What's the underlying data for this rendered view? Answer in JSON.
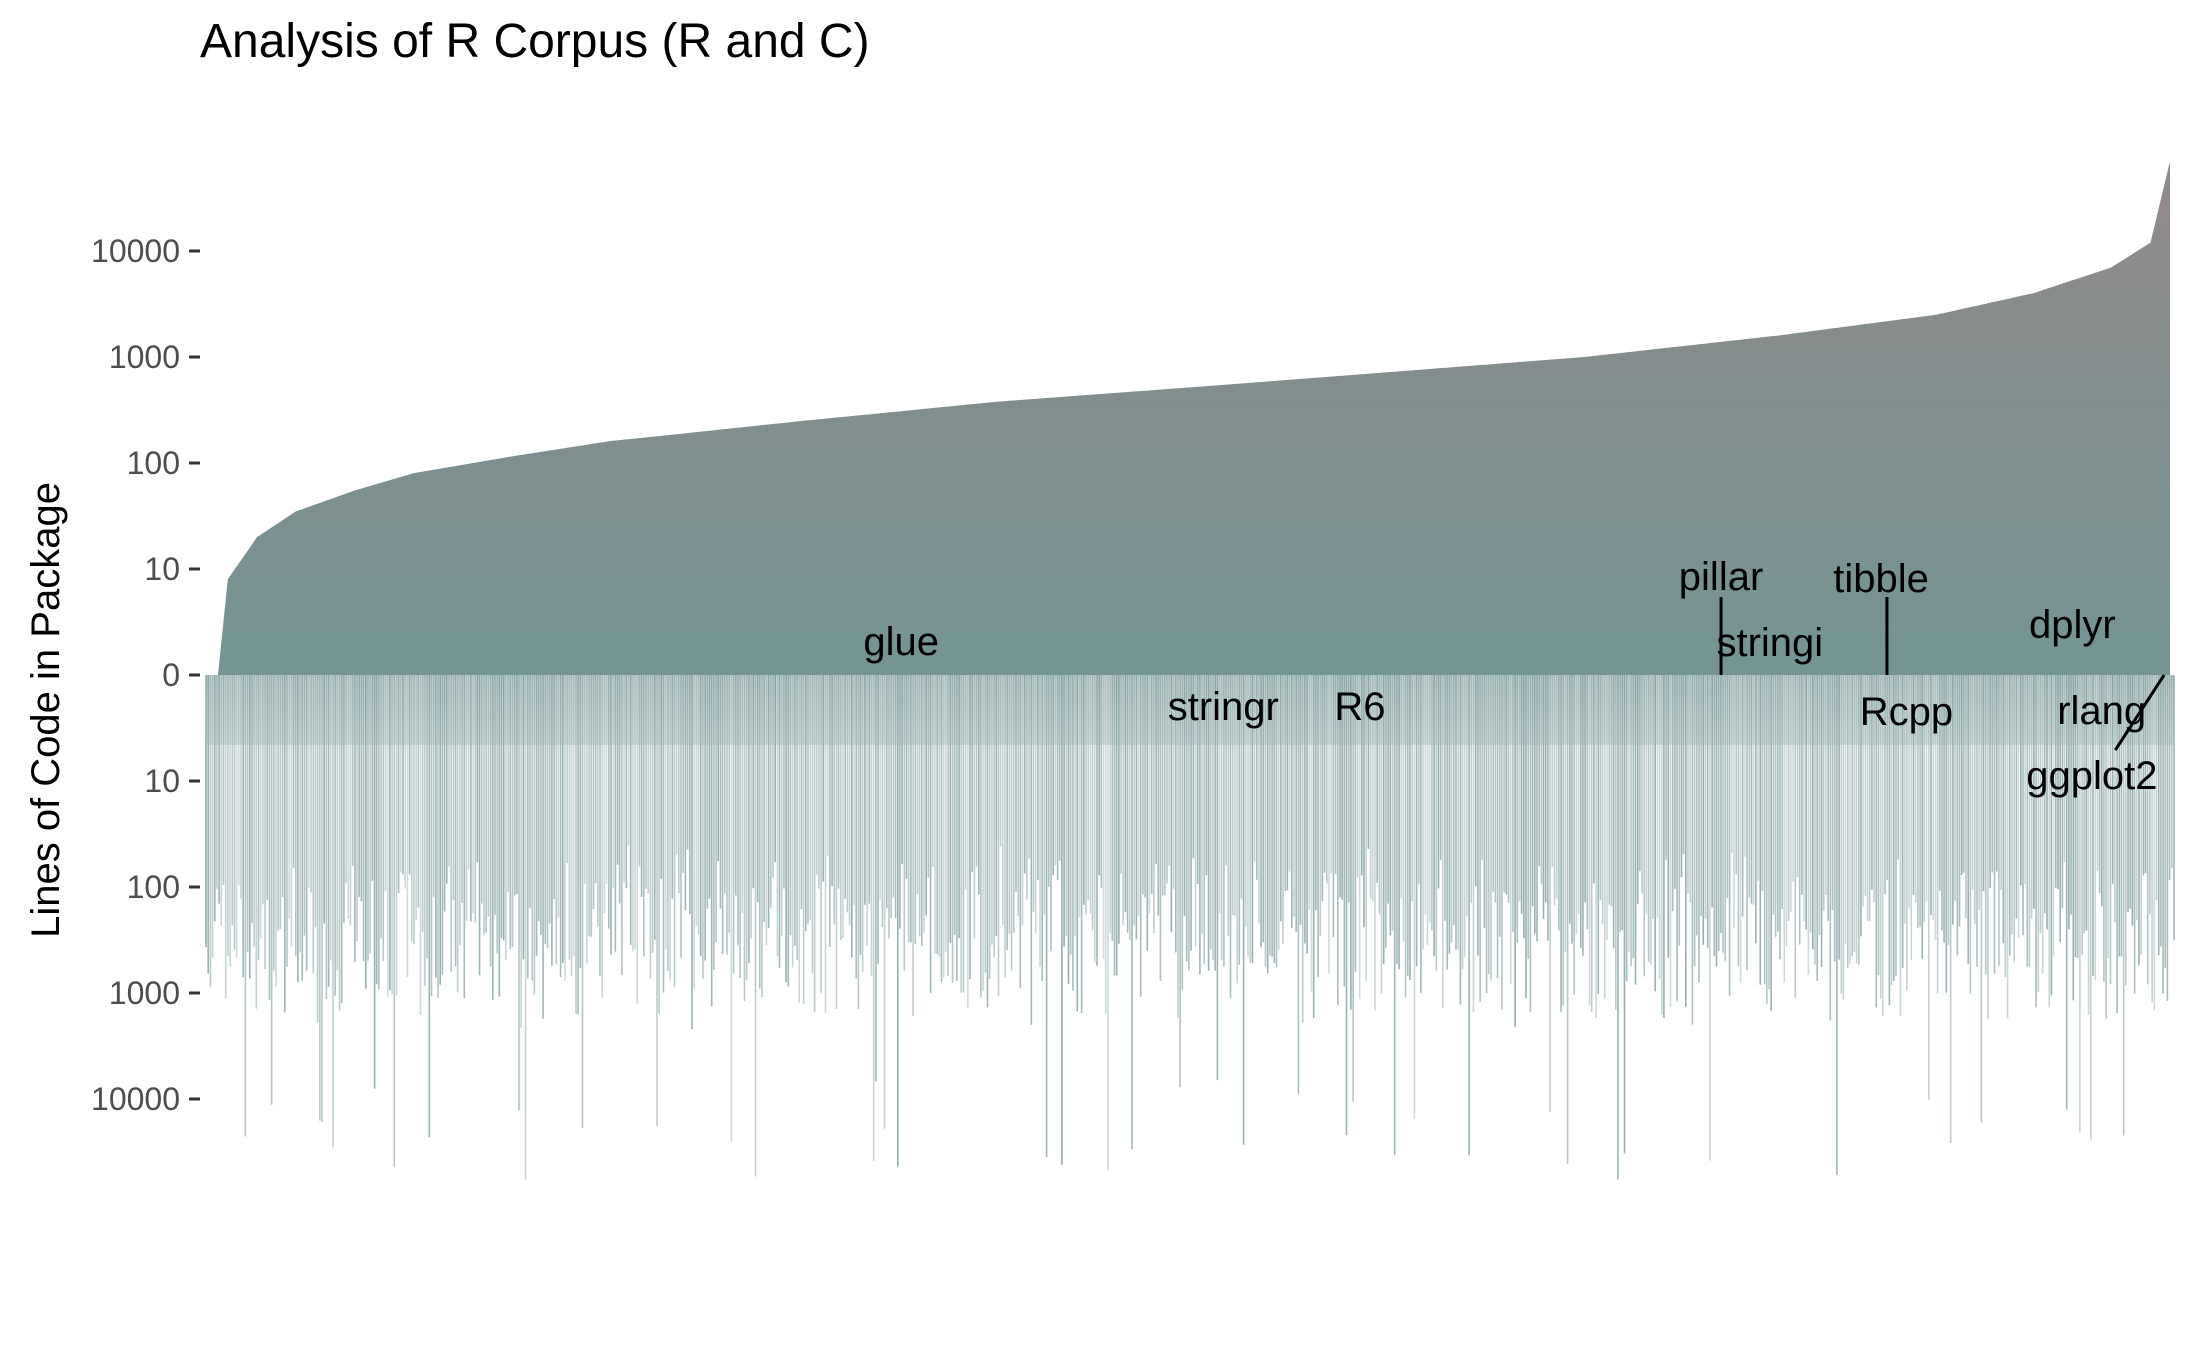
{
  "chart_data": {
    "type": "bar",
    "title": "Analysis of R Corpus (R and C)",
    "ylabel": "Lines of Code in Package",
    "xlabel": "",
    "y_scale": "log",
    "y_ticks_upper": [
      "10000",
      "1000",
      "100",
      "10",
      "0"
    ],
    "y_ticks_lower": [
      "10",
      "100",
      "1000",
      "10000"
    ],
    "upper_series": {
      "description_values": "R lines of code per package, sorted ascending",
      "curve_points": [
        {
          "rank": 0.0,
          "value": 1
        },
        {
          "rank": 0.005,
          "value": 8
        },
        {
          "rank": 0.02,
          "value": 20
        },
        {
          "rank": 0.04,
          "value": 35
        },
        {
          "rank": 0.07,
          "value": 55
        },
        {
          "rank": 0.1,
          "value": 80
        },
        {
          "rank": 0.15,
          "value": 115
        },
        {
          "rank": 0.2,
          "value": 160
        },
        {
          "rank": 0.3,
          "value": 250
        },
        {
          "rank": 0.4,
          "value": 380
        },
        {
          "rank": 0.5,
          "value": 520
        },
        {
          "rank": 0.6,
          "value": 720
        },
        {
          "rank": 0.7,
          "value": 1000
        },
        {
          "rank": 0.8,
          "value": 1600
        },
        {
          "rank": 0.88,
          "value": 2500
        },
        {
          "rank": 0.93,
          "value": 4000
        },
        {
          "rank": 0.97,
          "value": 7000
        },
        {
          "rank": 0.99,
          "value": 12000
        },
        {
          "rank": 1.0,
          "value": 70000
        }
      ]
    },
    "lower_series": {
      "description_values": "C lines of code per package, mirrored downward"
    },
    "annotations": [
      {
        "label": "glue",
        "rank": 0.35,
        "value": 1.5,
        "side": "upper"
      },
      {
        "label": "stringr",
        "rank": 0.515,
        "value": 2.5,
        "side": "lower"
      },
      {
        "label": "R6",
        "rank": 0.585,
        "value": 2.5,
        "side": "lower"
      },
      {
        "label": "pillar",
        "rank": 0.77,
        "value": 8,
        "side": "upper",
        "leader": true
      },
      {
        "label": "stringi",
        "rank": 0.795,
        "value": 1.5,
        "side": "upper"
      },
      {
        "label": "tibble",
        "rank": 0.852,
        "value": 8,
        "side": "upper",
        "leader": true
      },
      {
        "label": "Rcpp",
        "rank": 0.865,
        "value": 3,
        "side": "lower"
      },
      {
        "label": "dplyr",
        "rank": 0.95,
        "value": 3,
        "side": "upper"
      },
      {
        "label": "rlang",
        "rank": 0.965,
        "value": 3,
        "side": "lower"
      },
      {
        "label": "ggplot2",
        "rank": 0.96,
        "value": 8,
        "side": "lower",
        "leader": true
      }
    ],
    "colors": {
      "upper_top": "#8e8384",
      "upper_bottom": "#6e8f8f",
      "lower": "#7b9a9a"
    },
    "grid": false,
    "legend": "none"
  }
}
